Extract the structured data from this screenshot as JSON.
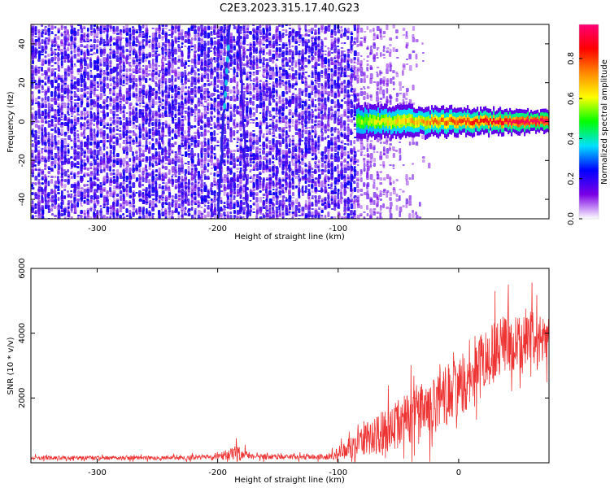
{
  "title": "C2E3.2023.315.17.40.G23",
  "chart_data": [
    {
      "type": "heatmap",
      "xlabel": "Height of straight line (km)",
      "ylabel": "Frequency (Hz)",
      "xlim": [
        -355,
        75
      ],
      "ylim": [
        -50,
        50
      ],
      "xticks": [
        -300,
        -200,
        -100,
        0
      ],
      "yticks": [
        -40,
        -20,
        0,
        20,
        40
      ],
      "colorbar": {
        "label": "Normalized spectral amplitude",
        "range": [
          0.0,
          0.97
        ],
        "ticks": [
          0.0,
          0.2,
          0.4,
          0.6,
          0.8
        ],
        "colormap": [
          "#ffffff",
          "#7b00e6",
          "#0000ff",
          "#00e0ff",
          "#00ff00",
          "#ffff00",
          "#ff8800",
          "#ff0000",
          "#ff0077"
        ]
      },
      "noise_region": {
        "x_from": -355,
        "x_to": -85,
        "mean_amplitude": 0.08
      },
      "fading_noise_region": {
        "x_from": -85,
        "x_to": -25
      },
      "diagonal_trace": {
        "x_at_top": -190,
        "x_at_bottom": -200,
        "amplitude": 0.3
      },
      "second_trace": {
        "x_at_top": -183,
        "x_at_bottom": -175
      },
      "signal_band": {
        "x_from": -85,
        "x_to": 75,
        "center_frequency": 0,
        "half_width_hz": 4,
        "peak_amplitude": 0.9
      }
    },
    {
      "type": "line",
      "xlabel": "Height of straight line (km)",
      "ylabel": "SNR (10 * v/v)",
      "xlim": [
        -355,
        75
      ],
      "ylim": [
        0,
        6000
      ],
      "xticks": [
        -300,
        -200,
        -100,
        0
      ],
      "yticks": [
        2000,
        4000,
        6000
      ],
      "color": "#ee3333",
      "series_envelope": {
        "x": [
          -355,
          -250,
          -200,
          -185,
          -170,
          -110,
          -100,
          -80,
          -60,
          -40,
          -20,
          0,
          20,
          40,
          60,
          75
        ],
        "mean": [
          150,
          150,
          180,
          300,
          180,
          180,
          300,
          650,
          1000,
          1400,
          1800,
          2300,
          3200,
          3700,
          3800,
          3600
        ],
        "spread": [
          60,
          60,
          80,
          250,
          80,
          80,
          200,
          450,
          700,
          800,
          900,
          1000,
          1000,
          900,
          900,
          800
        ]
      }
    }
  ]
}
